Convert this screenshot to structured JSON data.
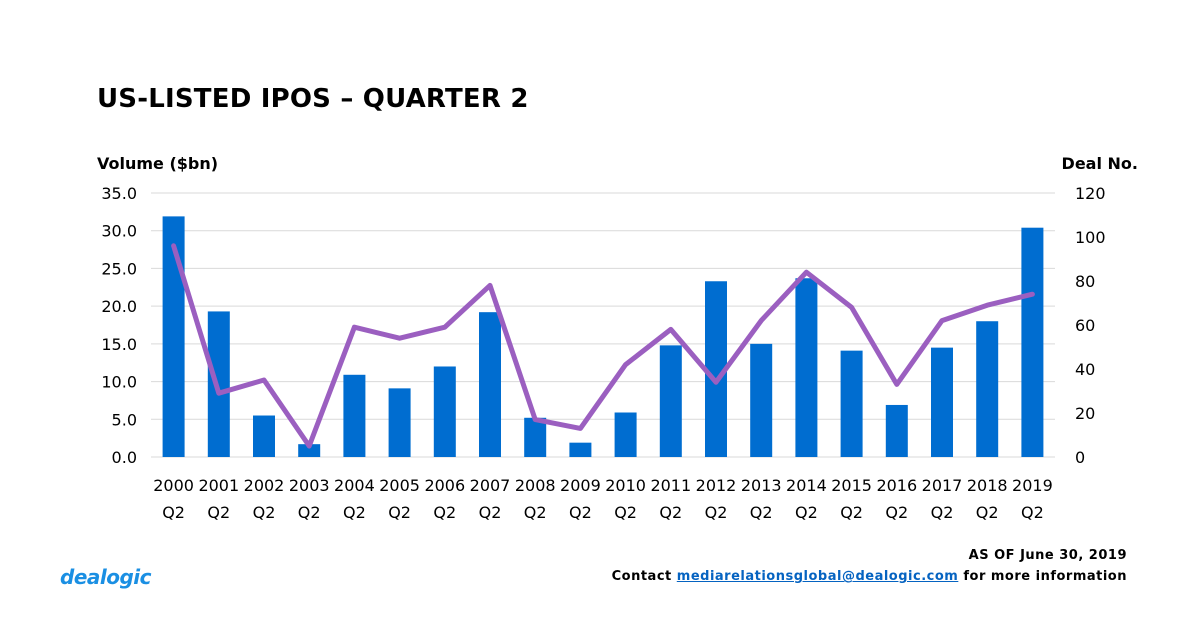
{
  "chart_data": {
    "type": "bar+line",
    "title": "US-LISTED IPOS – QUARTER 2",
    "ylabel": "Volume ($bn)",
    "y2label": "Deal No.",
    "ylim": [
      0,
      35
    ],
    "y2lim": [
      0,
      120
    ],
    "yticks": [
      "0.0",
      "5.0",
      "10.0",
      "15.0",
      "20.0",
      "25.0",
      "30.0",
      "35.0"
    ],
    "y2ticks": [
      "0",
      "20",
      "40",
      "60",
      "80",
      "100",
      "120"
    ],
    "grid": true,
    "categories": [
      "2000",
      "2001",
      "2002",
      "2003",
      "2004",
      "2005",
      "2006",
      "2007",
      "2008",
      "2009",
      "2010",
      "2011",
      "2012",
      "2013",
      "2014",
      "2015",
      "2016",
      "2017",
      "2018",
      "2019"
    ],
    "category_sub": "Q2",
    "series": [
      {
        "name": "Volume ($bn)",
        "type": "bar",
        "axis": "left",
        "color": "#006dd0",
        "values": [
          31.9,
          19.3,
          5.5,
          1.7,
          10.9,
          9.1,
          12.0,
          19.2,
          5.2,
          1.9,
          5.9,
          14.8,
          23.3,
          15.0,
          23.7,
          14.1,
          6.9,
          14.5,
          18.0,
          30.4
        ]
      },
      {
        "name": "Deal No.",
        "type": "line",
        "axis": "right",
        "color": "#9b5fc0",
        "values": [
          96,
          29,
          35,
          5,
          59,
          54,
          59,
          78,
          17,
          13,
          42,
          58,
          34,
          62,
          84,
          68,
          33,
          62,
          69,
          74
        ]
      }
    ]
  },
  "footer": {
    "as_of": "AS OF June 30, 2019",
    "contact_prefix": "Contact",
    "email": "mediarelationsglobal@dealogic.com",
    "contact_suffix": "for more information"
  },
  "logo": "dealogic"
}
